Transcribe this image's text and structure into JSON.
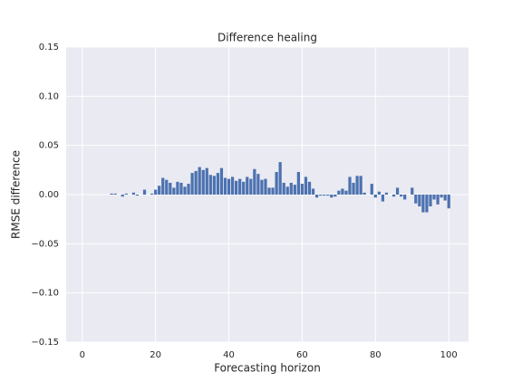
{
  "chart_data": {
    "type": "bar",
    "title": "Difference healing",
    "xlabel": "Forecasting horizon",
    "ylabel": "RMSE difference",
    "color": "#4c72b0",
    "grid": true,
    "x": [
      1,
      2,
      3,
      4,
      5,
      6,
      7,
      8,
      9,
      10,
      11,
      12,
      13,
      14,
      15,
      16,
      17,
      18,
      19,
      20,
      21,
      22,
      23,
      24,
      25,
      26,
      27,
      28,
      29,
      30,
      31,
      32,
      33,
      34,
      35,
      36,
      37,
      38,
      39,
      40,
      41,
      42,
      43,
      44,
      45,
      46,
      47,
      48,
      49,
      50,
      51,
      52,
      53,
      54,
      55,
      56,
      57,
      58,
      59,
      60,
      61,
      62,
      63,
      64,
      65,
      66,
      67,
      68,
      69,
      70,
      71,
      72,
      73,
      74,
      75,
      76,
      77,
      78,
      79,
      80,
      81,
      82,
      83,
      84,
      85,
      86,
      87,
      88,
      89,
      90,
      91,
      92,
      93,
      94,
      95,
      96,
      97,
      98,
      99,
      100
    ],
    "values": [
      0,
      0,
      0,
      0,
      0,
      0,
      0,
      0.001,
      0.001,
      0,
      -0.002,
      0.001,
      0,
      0.002,
      -0.001,
      0,
      0.005,
      0,
      0.001,
      0.005,
      0.009,
      0.017,
      0.015,
      0.012,
      0.007,
      0.013,
      0.012,
      0.008,
      0.011,
      0.022,
      0.024,
      0.028,
      0.025,
      0.027,
      0.02,
      0.019,
      0.022,
      0.027,
      0.017,
      0.016,
      0.018,
      0.014,
      0.016,
      0.013,
      0.018,
      0.016,
      0.026,
      0.021,
      0.015,
      0.016,
      0.007,
      0.007,
      0.023,
      0.033,
      0.012,
      0.008,
      0.012,
      0.01,
      0.023,
      0.011,
      0.018,
      0.013,
      0.006,
      -0.003,
      -0.001,
      -0.001,
      -0.001,
      -0.003,
      -0.002,
      0.004,
      0.006,
      0.004,
      0.018,
      0.012,
      0.019,
      0.019,
      0.002,
      0,
      0.011,
      -0.003,
      0.003,
      -0.007,
      0.002,
      0,
      -0.002,
      0.007,
      -0.002,
      -0.005,
      0,
      0.007,
      -0.009,
      -0.012,
      -0.018,
      -0.018,
      -0.012,
      -0.005,
      -0.01,
      -0.003,
      -0.006,
      -0.014
    ],
    "xlim": [
      -4.39,
      105.39
    ],
    "xticks": [
      0,
      20,
      40,
      60,
      80,
      100
    ],
    "ylim": [
      -0.15,
      0.15
    ],
    "yticks": [
      {
        "value": -0.15,
        "label": "−0.15"
      },
      {
        "value": -0.1,
        "label": "−0.10"
      },
      {
        "value": -0.05,
        "label": "−0.05"
      },
      {
        "value": 0,
        "label": "0.00"
      },
      {
        "value": 0.05,
        "label": "0.05"
      },
      {
        "value": 0.1,
        "label": "0.10"
      },
      {
        "value": 0.15,
        "label": "0.15"
      }
    ]
  }
}
